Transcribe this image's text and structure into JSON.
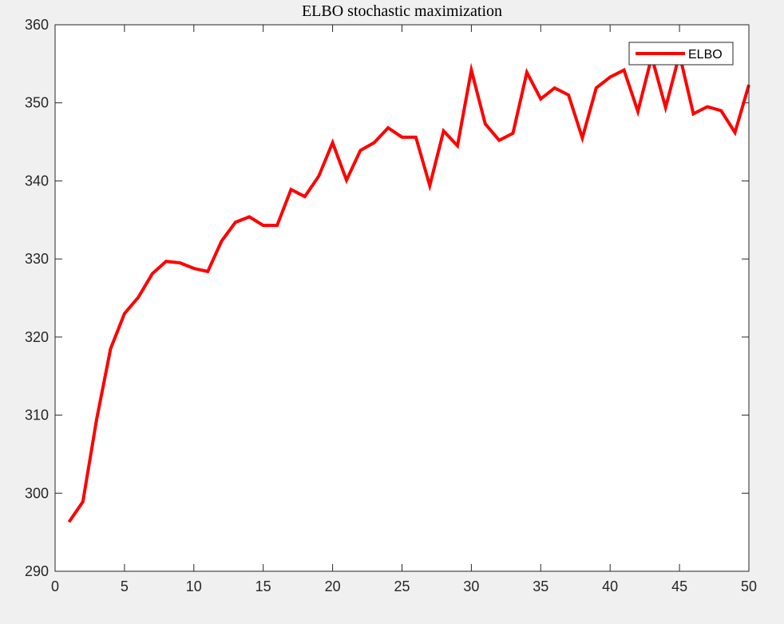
{
  "chart_data": {
    "type": "line",
    "title": "ELBO stochastic maximization",
    "xlabel": "",
    "ylabel": "",
    "xlim": [
      0,
      50
    ],
    "ylim": [
      290,
      360
    ],
    "xticks": [
      0,
      5,
      10,
      15,
      20,
      25,
      30,
      35,
      40,
      45,
      50
    ],
    "yticks": [
      290,
      300,
      310,
      320,
      330,
      340,
      350,
      360
    ],
    "grid": false,
    "legend_position": "top-right",
    "series": [
      {
        "name": "ELBO",
        "color": "#ff0000",
        "x": [
          1,
          2,
          3,
          4,
          5,
          6,
          7,
          8,
          9,
          10,
          11,
          12,
          13,
          14,
          15,
          16,
          17,
          18,
          19,
          20,
          21,
          22,
          23,
          24,
          25,
          26,
          27,
          28,
          29,
          30,
          31,
          32,
          33,
          34,
          35,
          36,
          37,
          38,
          39,
          40,
          41,
          42,
          43,
          44,
          45,
          46,
          47,
          48,
          49,
          50
        ],
        "y": [
          296.3,
          298.9,
          309.5,
          318.5,
          323.0,
          325.1,
          328.1,
          329.7,
          329.5,
          328.8,
          328.4,
          332.3,
          334.7,
          335.4,
          334.3,
          334.3,
          338.9,
          338.0,
          340.6,
          344.9,
          340.1,
          343.9,
          344.9,
          346.8,
          345.6,
          345.6,
          339.4,
          346.4,
          344.5,
          354.2,
          347.3,
          345.2,
          346.1,
          353.9,
          350.5,
          351.9,
          351.0,
          345.5,
          351.9,
          353.3,
          354.2,
          348.9,
          355.9,
          349.4,
          356.2,
          348.6,
          349.5,
          349.0,
          346.2,
          352.3
        ]
      }
    ]
  }
}
